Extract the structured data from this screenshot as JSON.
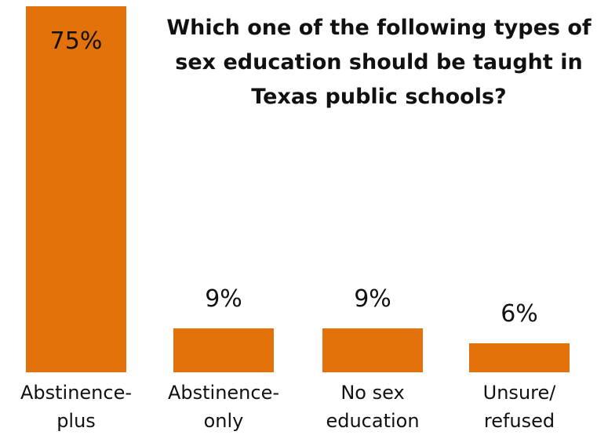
{
  "chart_data": {
    "type": "bar",
    "title_lines": [
      "Which one of the following types of",
      "sex education should be taught in",
      "Texas public schools?"
    ],
    "categories": [
      [
        "Abstinence-",
        "plus"
      ],
      [
        "Abstinence-",
        "only"
      ],
      [
        "No sex",
        "education"
      ],
      [
        "Unsure/",
        "refused"
      ]
    ],
    "values": [
      75,
      9,
      9,
      6
    ],
    "value_labels": [
      "75%",
      "9%",
      "9%",
      "6%"
    ],
    "ylim": [
      0,
      75
    ],
    "grid": false,
    "bar_color": "#e27209"
  }
}
